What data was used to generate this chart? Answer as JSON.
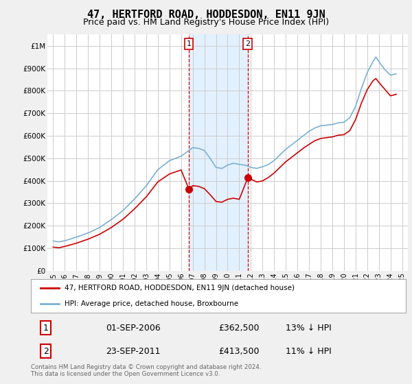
{
  "title": "47, HERTFORD ROAD, HODDESDON, EN11 9JN",
  "subtitle": "Price paid vs. HM Land Registry's House Price Index (HPI)",
  "title_fontsize": 11,
  "subtitle_fontsize": 9,
  "ylabel_ticks": [
    "£0",
    "£100K",
    "£200K",
    "£300K",
    "£400K",
    "£500K",
    "£600K",
    "£700K",
    "£800K",
    "£900K",
    "£1M"
  ],
  "ytick_values": [
    0,
    100000,
    200000,
    300000,
    400000,
    500000,
    600000,
    700000,
    800000,
    900000,
    1000000
  ],
  "ylim": [
    0,
    1050000
  ],
  "xlim_start": 1994.5,
  "xlim_end": 2025.5,
  "xtick_years": [
    1995,
    1996,
    1997,
    1998,
    1999,
    2000,
    2001,
    2002,
    2003,
    2004,
    2005,
    2006,
    2007,
    2008,
    2009,
    2010,
    2011,
    2012,
    2013,
    2014,
    2015,
    2016,
    2017,
    2018,
    2019,
    2020,
    2021,
    2022,
    2023,
    2024,
    2025
  ],
  "grid_color": "#cccccc",
  "background_color": "#f0f0f0",
  "plot_background": "#ffffff",
  "red_line_color": "#cc0000",
  "blue_line_color": "#7ab0d4",
  "sale1_x": 2006.67,
  "sale1_y": 362500,
  "sale2_x": 2011.73,
  "sale2_y": 413500,
  "shade_color": "#ddeeff",
  "dashed_line_color": "#cc0000",
  "legend_red_label": "47, HERTFORD ROAD, HODDESDON, EN11 9JN (detached house)",
  "legend_blue_label": "HPI: Average price, detached house, Broxbourne",
  "table_row1": [
    "1",
    "01-SEP-2006",
    "£362,500",
    "13% ↓ HPI"
  ],
  "table_row2": [
    "2",
    "23-SEP-2011",
    "£413,500",
    "11% ↓ HPI"
  ],
  "footer_text": "Contains HM Land Registry data © Crown copyright and database right 2024.\nThis data is licensed under the Open Government Licence v3.0."
}
